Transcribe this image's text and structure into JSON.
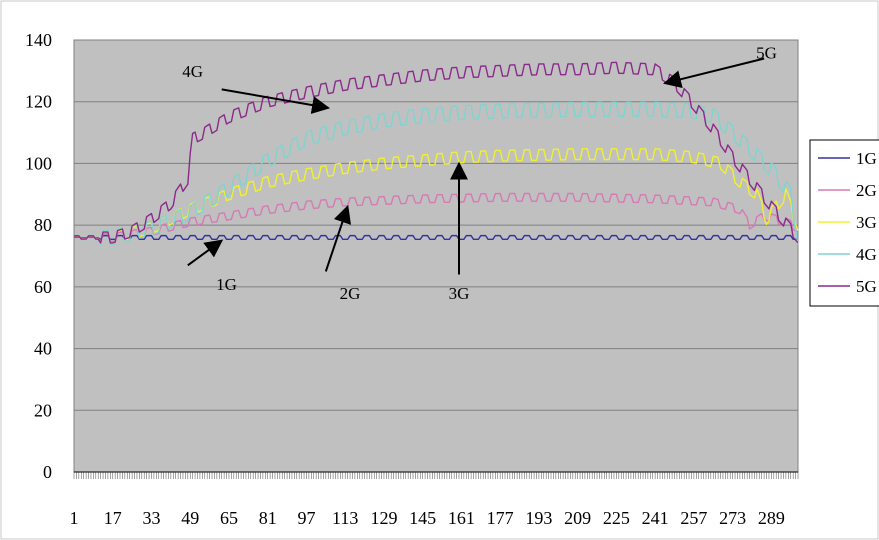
{
  "chart_data": {
    "type": "line",
    "title": "",
    "xlabel": "",
    "ylabel": "",
    "ylim": [
      0,
      140
    ],
    "y_ticks": [
      0,
      20,
      40,
      60,
      80,
      100,
      120,
      140
    ],
    "x_range": [
      1,
      300
    ],
    "x_tick_labels": [
      "1",
      "17",
      "33",
      "49",
      "65",
      "81",
      "97",
      "113",
      "129",
      "145",
      "161",
      "177",
      "193",
      "209",
      "225",
      "241",
      "257",
      "273",
      "289"
    ],
    "grid": "horizontal",
    "plot_background": "#c0c0c0",
    "legend_position": "right",
    "series": [
      {
        "name": "1G",
        "color": "#3333a0",
        "x": [
          1,
          300
        ],
        "y": [
          76,
          76
        ],
        "amplitude": 1.2
      },
      {
        "name": "2G",
        "color": "#d67ab5",
        "x": [
          1,
          17,
          33,
          49,
          65,
          81,
          97,
          113,
          129,
          145,
          177,
          209,
          241,
          265,
          276,
          280,
          286,
          295,
          300
        ],
        "y": [
          76,
          76,
          78,
          81,
          83,
          85,
          86.5,
          87.5,
          88,
          88.5,
          89,
          89,
          88.5,
          87.5,
          85,
          80,
          83,
          81,
          79
        ],
        "amplitude": 2.5
      },
      {
        "name": "3G",
        "color": "#f0f030",
        "x": [
          1,
          17,
          33,
          49,
          65,
          81,
          97,
          113,
          129,
          145,
          161,
          177,
          209,
          241,
          257,
          268,
          276,
          283,
          287,
          295,
          300
        ],
        "y": [
          76,
          76,
          79,
          85,
          90,
          94,
          96.5,
          98.5,
          100,
          101,
          102,
          102.5,
          103,
          103,
          102,
          100,
          94,
          90,
          82,
          90,
          80
        ],
        "amplitude": 3.5
      },
      {
        "name": "4G",
        "color": "#7fd4d0",
        "x": [
          1,
          17,
          33,
          49,
          65,
          81,
          97,
          113,
          129,
          145,
          161,
          177,
          209,
          241,
          257,
          265,
          273,
          281,
          289,
          297,
          300
        ],
        "y": [
          76,
          76,
          79,
          84,
          92,
          101,
          108,
          111.5,
          114,
          115.5,
          116.5,
          117,
          117.5,
          117.5,
          117,
          115.5,
          110,
          104,
          98,
          90,
          76
        ],
        "amplitude": 4.5
      },
      {
        "name": "5G",
        "color": "#8b2a8b",
        "x": [
          1,
          17,
          25,
          33,
          41,
          48,
          50,
          55,
          65,
          81,
          97,
          113,
          129,
          145,
          161,
          177,
          193,
          209,
          225,
          241,
          249,
          257,
          265,
          273,
          281,
          289,
          300
        ],
        "y": [
          76,
          76,
          78,
          82,
          87,
          95,
          108,
          110,
          115,
          120,
          123,
          125.5,
          127,
          128.5,
          129.5,
          130,
          130.5,
          130.5,
          131,
          130.5,
          126,
          119,
          111,
          102,
          94,
          86,
          76
        ],
        "amplitude": 3.5
      }
    ],
    "annotations": [
      {
        "label": "4G",
        "text_at": [
          50,
          130
        ],
        "arrow_from": [
          62,
          124
        ],
        "arrow_to": [
          106,
          118
        ]
      },
      {
        "label": "5G",
        "text_at": [
          287,
          136
        ],
        "arrow_from": [
          286,
          134
        ],
        "arrow_to": [
          245,
          126
        ]
      },
      {
        "label": "1G",
        "text_at": [
          64,
          61
        ],
        "arrow_from": [
          48,
          67
        ],
        "arrow_to": [
          62,
          75
        ]
      },
      {
        "label": "2G",
        "text_at": [
          115,
          58
        ],
        "arrow_from": [
          105,
          65
        ],
        "arrow_to": [
          114,
          86
        ]
      },
      {
        "label": "3G",
        "text_at": [
          160,
          58
        ],
        "arrow_from": [
          160,
          64
        ],
        "arrow_to": [
          160,
          100
        ]
      }
    ]
  }
}
